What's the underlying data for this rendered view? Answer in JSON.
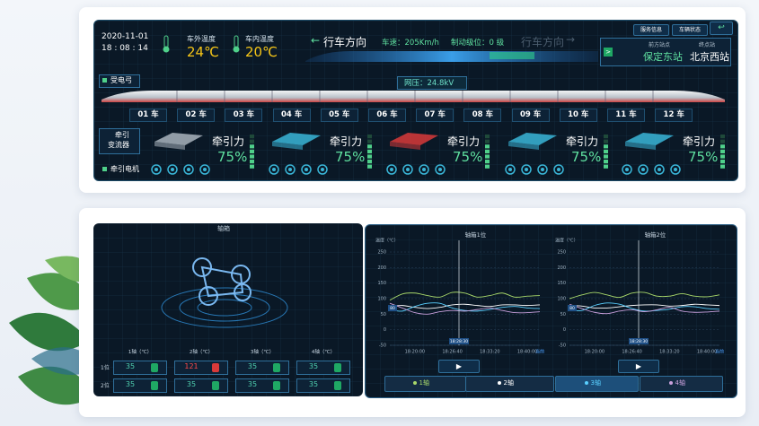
{
  "header": {
    "date": "2020-11-01",
    "time": "18 : 08 : 14",
    "outside_temp_label": "车外温度",
    "outside_temp": "24℃",
    "inside_temp_label": "车内温度",
    "inside_temp": "20℃",
    "direction": "行车方向",
    "speed": "车速：205Km/h",
    "brake": "制动级位：0 级",
    "direction_ghost": "行车方向",
    "buttons": [
      "服务信息",
      "车辆状态"
    ],
    "next_station_label": "前方站点",
    "next_station": "保定东站",
    "terminal_label": "终点站",
    "terminal": "北京西站"
  },
  "pantograph": {
    "label": "受电弓",
    "voltage": "网压：24.8kV"
  },
  "cars": [
    "01 车",
    "02 车",
    "03 车",
    "04 车",
    "05 车",
    "06 车",
    "07 车",
    "08 车",
    "09 车",
    "10 车",
    "11 车",
    "12 车"
  ],
  "traction": {
    "converter_label": [
      "牵引",
      "变流器"
    ],
    "motor_label": "牵引电机",
    "units": [
      {
        "label": "牵引力",
        "value": "75%",
        "color": "#a9b4bd"
      },
      {
        "label": "牵引力",
        "value": "75%",
        "color": "#3ab6d8"
      },
      {
        "label": "牵引力",
        "value": "75%",
        "color": "#d83a3a"
      },
      {
        "label": "牵引力",
        "value": "75%",
        "color": "#3ab6d8"
      },
      {
        "label": "牵引力",
        "value": "75%",
        "color": "#3ab6d8"
      }
    ]
  },
  "axlebox": {
    "title": "轴箱",
    "columns": [
      "1轴（℃）",
      "2轴（℃）",
      "3轴（℃）",
      "4轴（℃）"
    ],
    "rows": [
      {
        "label": "1位",
        "values": [
          "35",
          "121",
          "35",
          "35"
        ],
        "alarm": [
          false,
          true,
          false,
          false
        ]
      },
      {
        "label": "2位",
        "values": [
          "35",
          "35",
          "35",
          "35"
        ],
        "alarm": [
          false,
          false,
          false,
          false
        ]
      }
    ]
  },
  "chart_data": [
    {
      "type": "line",
      "title": "轴箱1位",
      "y_label": "温度（℃）",
      "cursor_label": "18:28:30",
      "marker_label": "80",
      "categories": [
        null,
        null,
        "18:20:00",
        null,
        null,
        "18:26:40",
        null,
        null,
        "18:33:20",
        null,
        null,
        "18:40:00",
        "当前"
      ],
      "ylim": [
        -50,
        250
      ],
      "yticks": [
        -50,
        0,
        50,
        100,
        150,
        200,
        250
      ],
      "grid": true,
      "series": [
        {
          "name": "1轴",
          "color": "#a8d86a",
          "values": [
            95,
            115,
            118,
            110,
            105,
            120,
            118,
            105,
            110,
            118,
            105,
            108,
            110
          ]
        },
        {
          "name": "2轴",
          "color": "#ffffff",
          "values": [
            75,
            78,
            72,
            68,
            72,
            80,
            82,
            78,
            75,
            80,
            80,
            78,
            80
          ]
        },
        {
          "name": "3轴",
          "color": "#5ad0ff",
          "values": [
            65,
            60,
            75,
            85,
            85,
            70,
            62,
            60,
            65,
            72,
            75,
            70,
            68
          ]
        },
        {
          "name": "4轴",
          "color": "#c9a0dc",
          "values": [
            85,
            70,
            55,
            50,
            58,
            62,
            60,
            65,
            70,
            62,
            55,
            55,
            58
          ]
        }
      ]
    },
    {
      "type": "line",
      "title": "轴箱2位",
      "y_label": "温度（℃）",
      "cursor_label": "18:28:30",
      "marker_label": "80",
      "categories": [
        null,
        null,
        "18:20:00",
        null,
        null,
        "18:26:40",
        null,
        null,
        "18:33:20",
        null,
        null,
        "18:40:00",
        "当前"
      ],
      "ylim": [
        -50,
        250
      ],
      "yticks": [
        -50,
        0,
        50,
        100,
        150,
        200,
        250
      ],
      "grid": true,
      "series": [
        {
          "color": "#a8d86a",
          "values": [
            100,
            112,
            120,
            112,
            104,
            118,
            120,
            108,
            108,
            116,
            108,
            106,
            112
          ]
        },
        {
          "color": "#ffffff",
          "values": [
            78,
            76,
            70,
            70,
            74,
            78,
            80,
            80,
            76,
            78,
            82,
            80,
            78
          ]
        },
        {
          "color": "#5ad0ff",
          "values": [
            62,
            62,
            78,
            86,
            82,
            68,
            60,
            62,
            66,
            74,
            74,
            68,
            66
          ]
        },
        {
          "color": "#c9a0dc",
          "values": [
            82,
            68,
            56,
            52,
            60,
            64,
            58,
            64,
            72,
            60,
            56,
            57,
            60
          ]
        }
      ]
    }
  ]
}
